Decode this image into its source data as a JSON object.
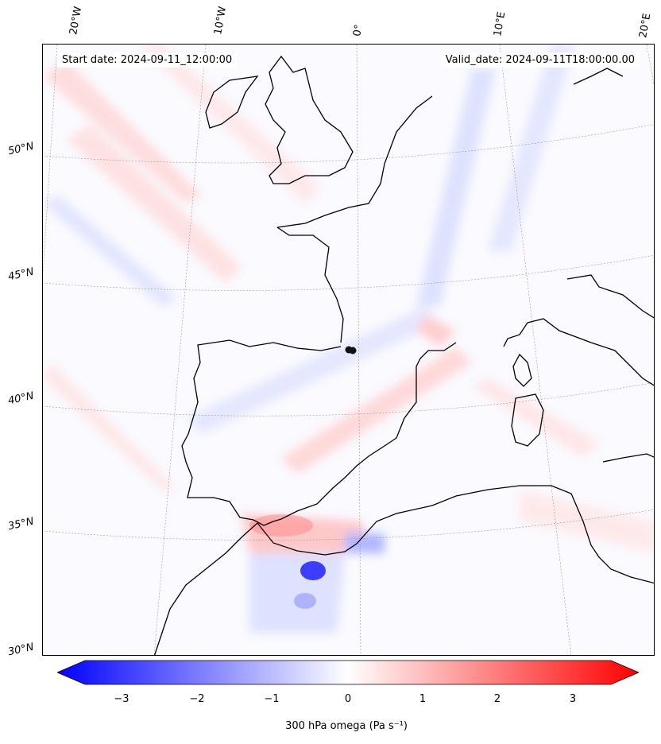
{
  "map": {
    "start_date": "Start date: 2024-09-11_12:00:00",
    "valid_date": "Valid_date: 2024-09-11T18:00:00.00",
    "lon_labels": [
      "20°W",
      "10°W",
      "0°",
      "10°E",
      "20°E"
    ],
    "lat_labels": [
      "50°N",
      "45°N",
      "40°N",
      "35°N",
      "30°N"
    ],
    "field": "300 hPa omega",
    "marker": "storm-center-dot"
  },
  "colorbar": {
    "ticks": [
      "−3",
      "−2",
      "−1",
      "0",
      "1",
      "2",
      "3"
    ],
    "label": "300 hPa omega (Pa s⁻¹)",
    "min_color": "#0000ff",
    "mid_color": "#ffffff",
    "max_color": "#ff0000",
    "range": [
      -3.6,
      3.6
    ]
  }
}
